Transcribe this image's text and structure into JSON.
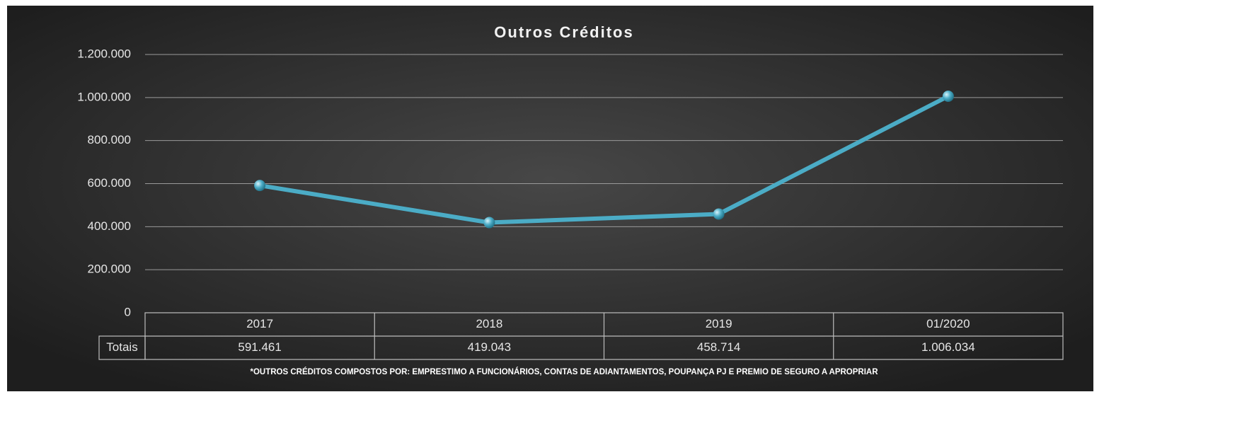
{
  "chart_data": {
    "type": "line",
    "title": "Outros Créditos",
    "categories": [
      "2017",
      "2018",
      "2019",
      "01/2020"
    ],
    "series": [
      {
        "name": "Totais",
        "color": "#4bacc6",
        "values": [
          591461,
          419043,
          458714,
          1006034
        ],
        "value_labels": [
          "591.461",
          "419.043",
          "458.714",
          "1.006.034"
        ]
      }
    ],
    "ylim": [
      0,
      1200000
    ],
    "yticks": [
      0,
      {
        "value": 200000,
        "label": "200.000"
      },
      {
        "value": 400000,
        "label": "400.000"
      },
      {
        "value": 600000,
        "label": "600.000"
      },
      {
        "value": 800000,
        "label": "800.000"
      },
      {
        "value": 1000000,
        "label": "1.000.000"
      },
      {
        "value": 1200000,
        "label": "1.200.000"
      }
    ],
    "grid": true,
    "note": "*OUTROS CRÉDITOS COMPOSTOS POR: EMPRESTIMO A FUNCIONÁRIOS, CONTAS DE ADIANTAMENTOS, POUPANÇA PJ E PREMIO DE SEGURO A APROPRIAR"
  }
}
